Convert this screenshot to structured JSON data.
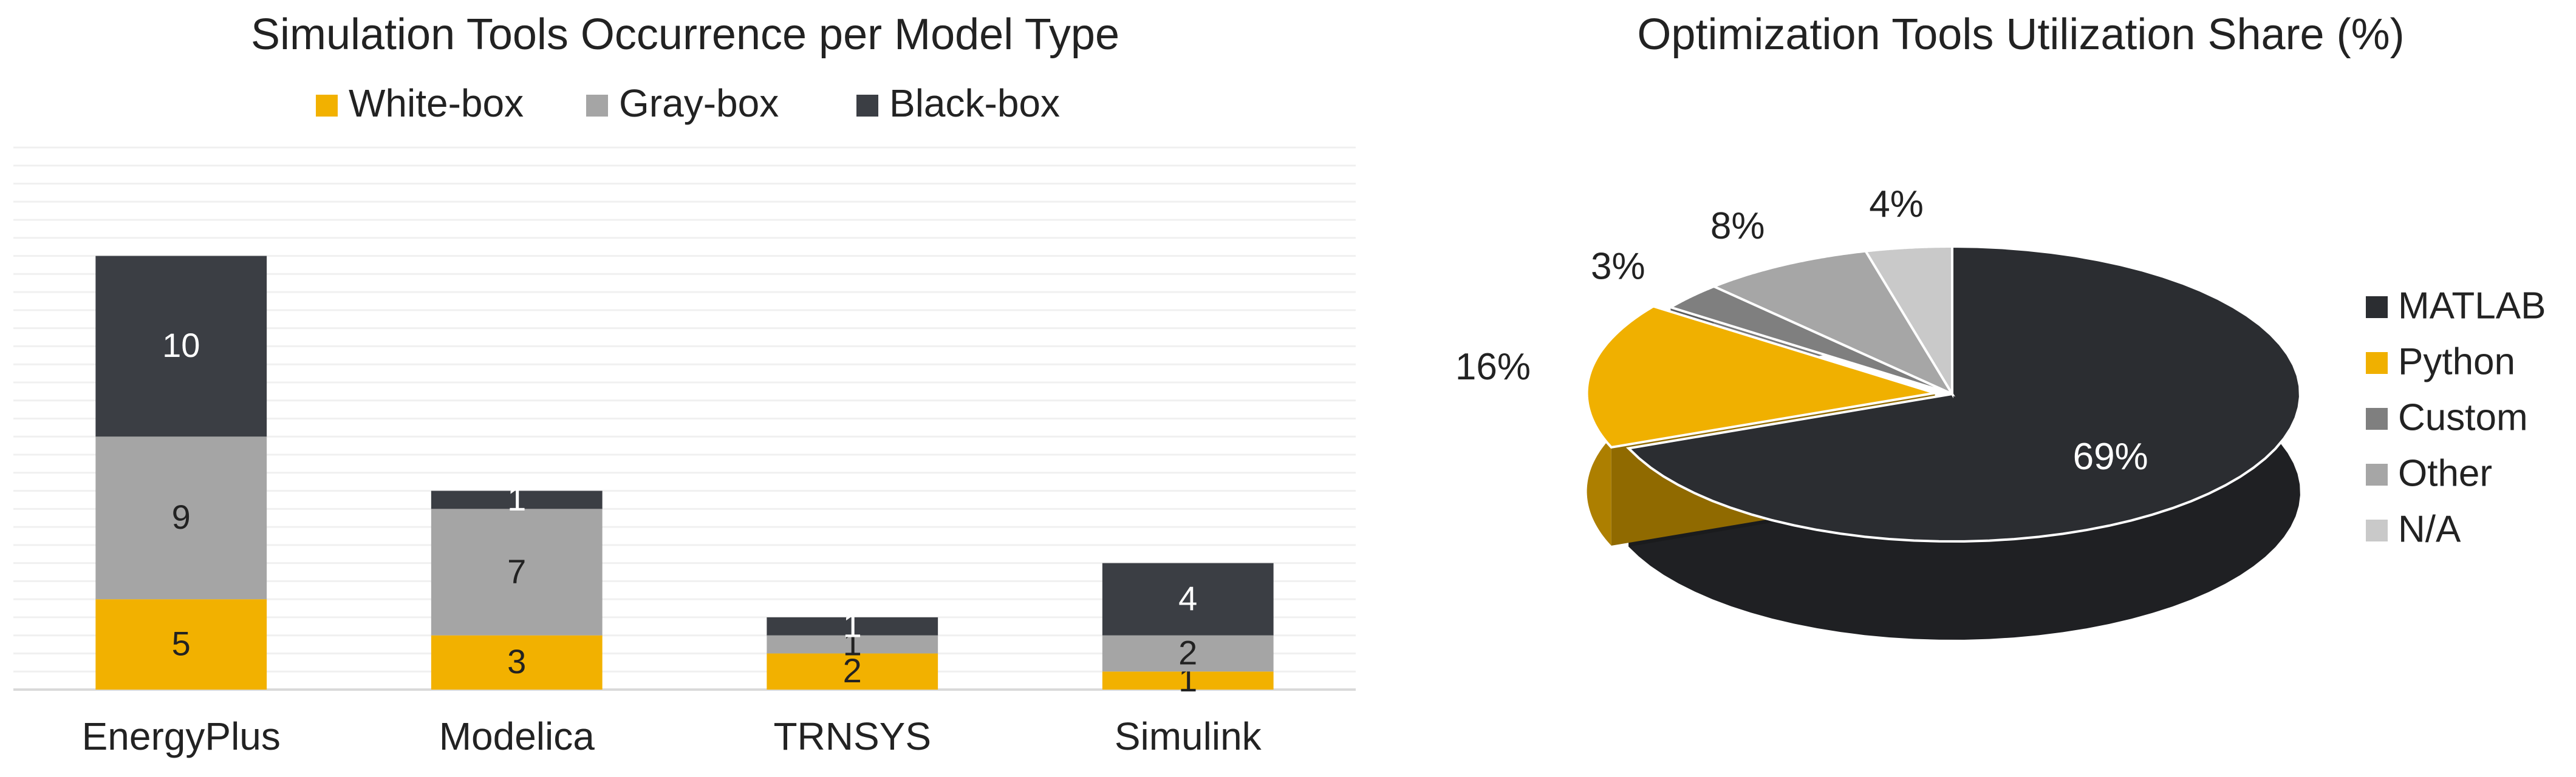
{
  "chart_data": [
    {
      "type": "bar",
      "stacked": true,
      "title": "Simulation Tools Occurrence per Model Type",
      "categories": [
        "EnergyPlus",
        "Modelica",
        "TRNSYS",
        "Simulink"
      ],
      "series": [
        {
          "name": "White-box",
          "color": "#f2b100",
          "values": [
            5,
            3,
            2,
            1
          ]
        },
        {
          "name": "Gray-box",
          "color": "#a5a5a5",
          "values": [
            9,
            7,
            1,
            2
          ]
        },
        {
          "name": "Black-box",
          "color": "#3b3e44",
          "values": [
            10,
            1,
            1,
            4
          ]
        }
      ],
      "ylim": [
        0,
        30
      ],
      "yticks": [
        0,
        1,
        2,
        3,
        4,
        5,
        6,
        7,
        8,
        9,
        10,
        11,
        12,
        13,
        14,
        15,
        16,
        17,
        18,
        19,
        20,
        21,
        22,
        23,
        24,
        25,
        26,
        27,
        28,
        29,
        30
      ],
      "show_ytick_labels": false,
      "grid": true,
      "legend": "top"
    },
    {
      "type": "pie",
      "title": "Optimization Tools Utilization Share (%)",
      "categories": [
        "MATLAB",
        "Python",
        "Custom",
        "Other",
        "N/A"
      ],
      "values": [
        69,
        16,
        3,
        8,
        4
      ],
      "value_labels": [
        "69%",
        "16%",
        "3%",
        "8%",
        "4%"
      ],
      "colors": [
        "#2b2d31",
        "#f0b000",
        "#7f7f7f",
        "#a6a6a6",
        "#c9c9c9"
      ],
      "exploded": [
        "Python"
      ],
      "legend": "right"
    }
  ]
}
